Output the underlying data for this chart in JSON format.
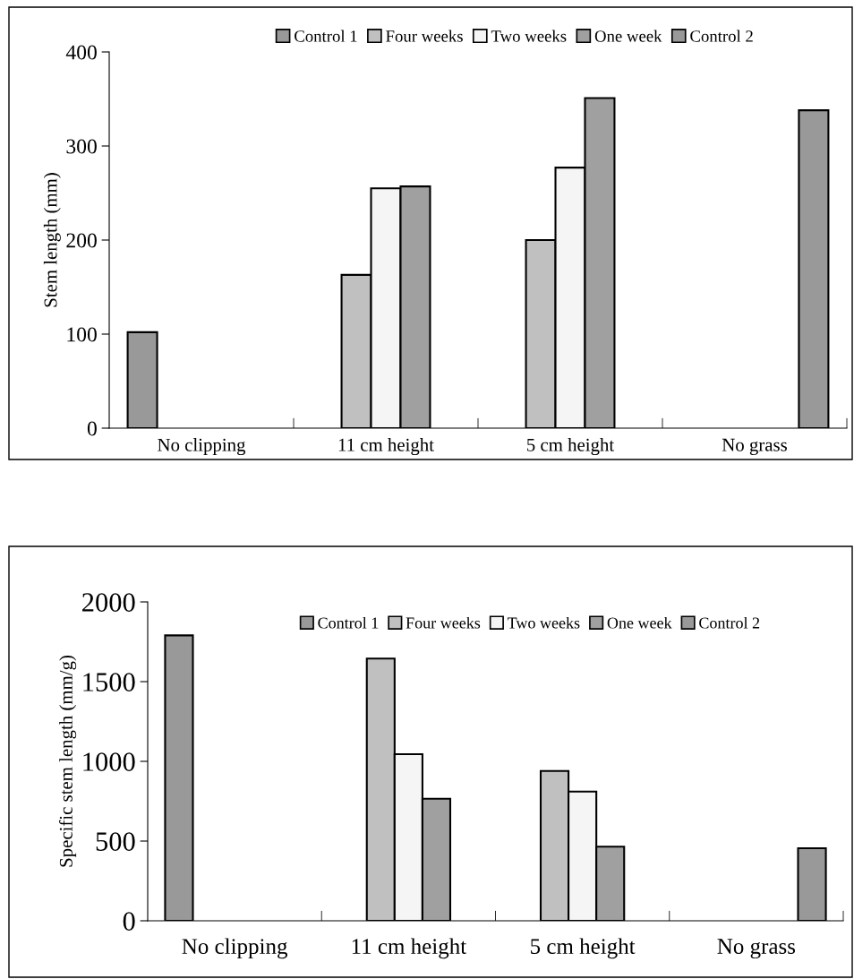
{
  "chart_data": [
    {
      "type": "bar",
      "ylabel": "Stem length (mm)",
      "categories": [
        "No clipping",
        "11 cm height",
        "5 cm height",
        "No grass"
      ],
      "ylim": [
        0,
        400
      ],
      "yticks": [
        0,
        100,
        200,
        300,
        400
      ],
      "grid": false,
      "legend": "top",
      "series": [
        {
          "name": "Control 1",
          "color": "#999999",
          "values": [
            102,
            null,
            null,
            null
          ]
        },
        {
          "name": "Four weeks",
          "color": "#c0c0c0",
          "values": [
            null,
            163,
            200,
            null
          ]
        },
        {
          "name": "Two weeks",
          "color": "#f5f5f5",
          "values": [
            null,
            255,
            277,
            null
          ]
        },
        {
          "name": "One week",
          "color": "#a0a0a0",
          "values": [
            null,
            257,
            351,
            null
          ]
        },
        {
          "name": "Control 2",
          "color": "#999999",
          "values": [
            null,
            null,
            null,
            338
          ]
        }
      ]
    },
    {
      "type": "bar",
      "ylabel": "Specific stem length (mm/g)",
      "categories": [
        "No clipping",
        "11 cm height",
        "5 cm height",
        "No grass"
      ],
      "ylim": [
        0,
        2000
      ],
      "yticks": [
        0,
        500,
        1000,
        1500,
        2000
      ],
      "grid": false,
      "legend": "top",
      "series": [
        {
          "name": "Control 1",
          "color": "#999999",
          "values": [
            1790,
            null,
            null,
            null
          ]
        },
        {
          "name": "Four weeks",
          "color": "#c0c0c0",
          "values": [
            null,
            1645,
            940,
            null
          ]
        },
        {
          "name": "Two weeks",
          "color": "#f5f5f5",
          "values": [
            null,
            1045,
            810,
            null
          ]
        },
        {
          "name": "One week",
          "color": "#a0a0a0",
          "values": [
            null,
            765,
            465,
            null
          ]
        },
        {
          "name": "Control 2",
          "color": "#999999",
          "values": [
            null,
            null,
            null,
            455
          ]
        }
      ]
    }
  ]
}
